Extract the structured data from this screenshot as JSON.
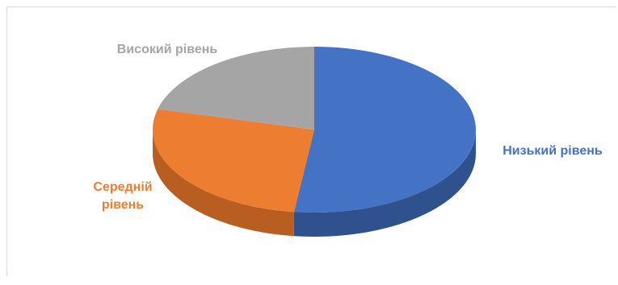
{
  "chart_data": {
    "type": "pie",
    "style": "3d",
    "title": "",
    "slices": [
      {
        "label": "Низький рівень",
        "value": 52,
        "color": "#4472C4",
        "side_color": "#2F528F"
      },
      {
        "label": "Середній рівень",
        "value": 27,
        "color": "#ED7D31",
        "side_color": "#B85E20"
      },
      {
        "label": "Високий рівень",
        "value": 21,
        "color": "#A5A5A5",
        "side_color": "#7F7F7F"
      }
    ],
    "label_lines": [
      [
        "Низький рівень"
      ],
      [
        "Середній",
        "рівень"
      ],
      [
        "Високий рівень"
      ]
    ]
  }
}
